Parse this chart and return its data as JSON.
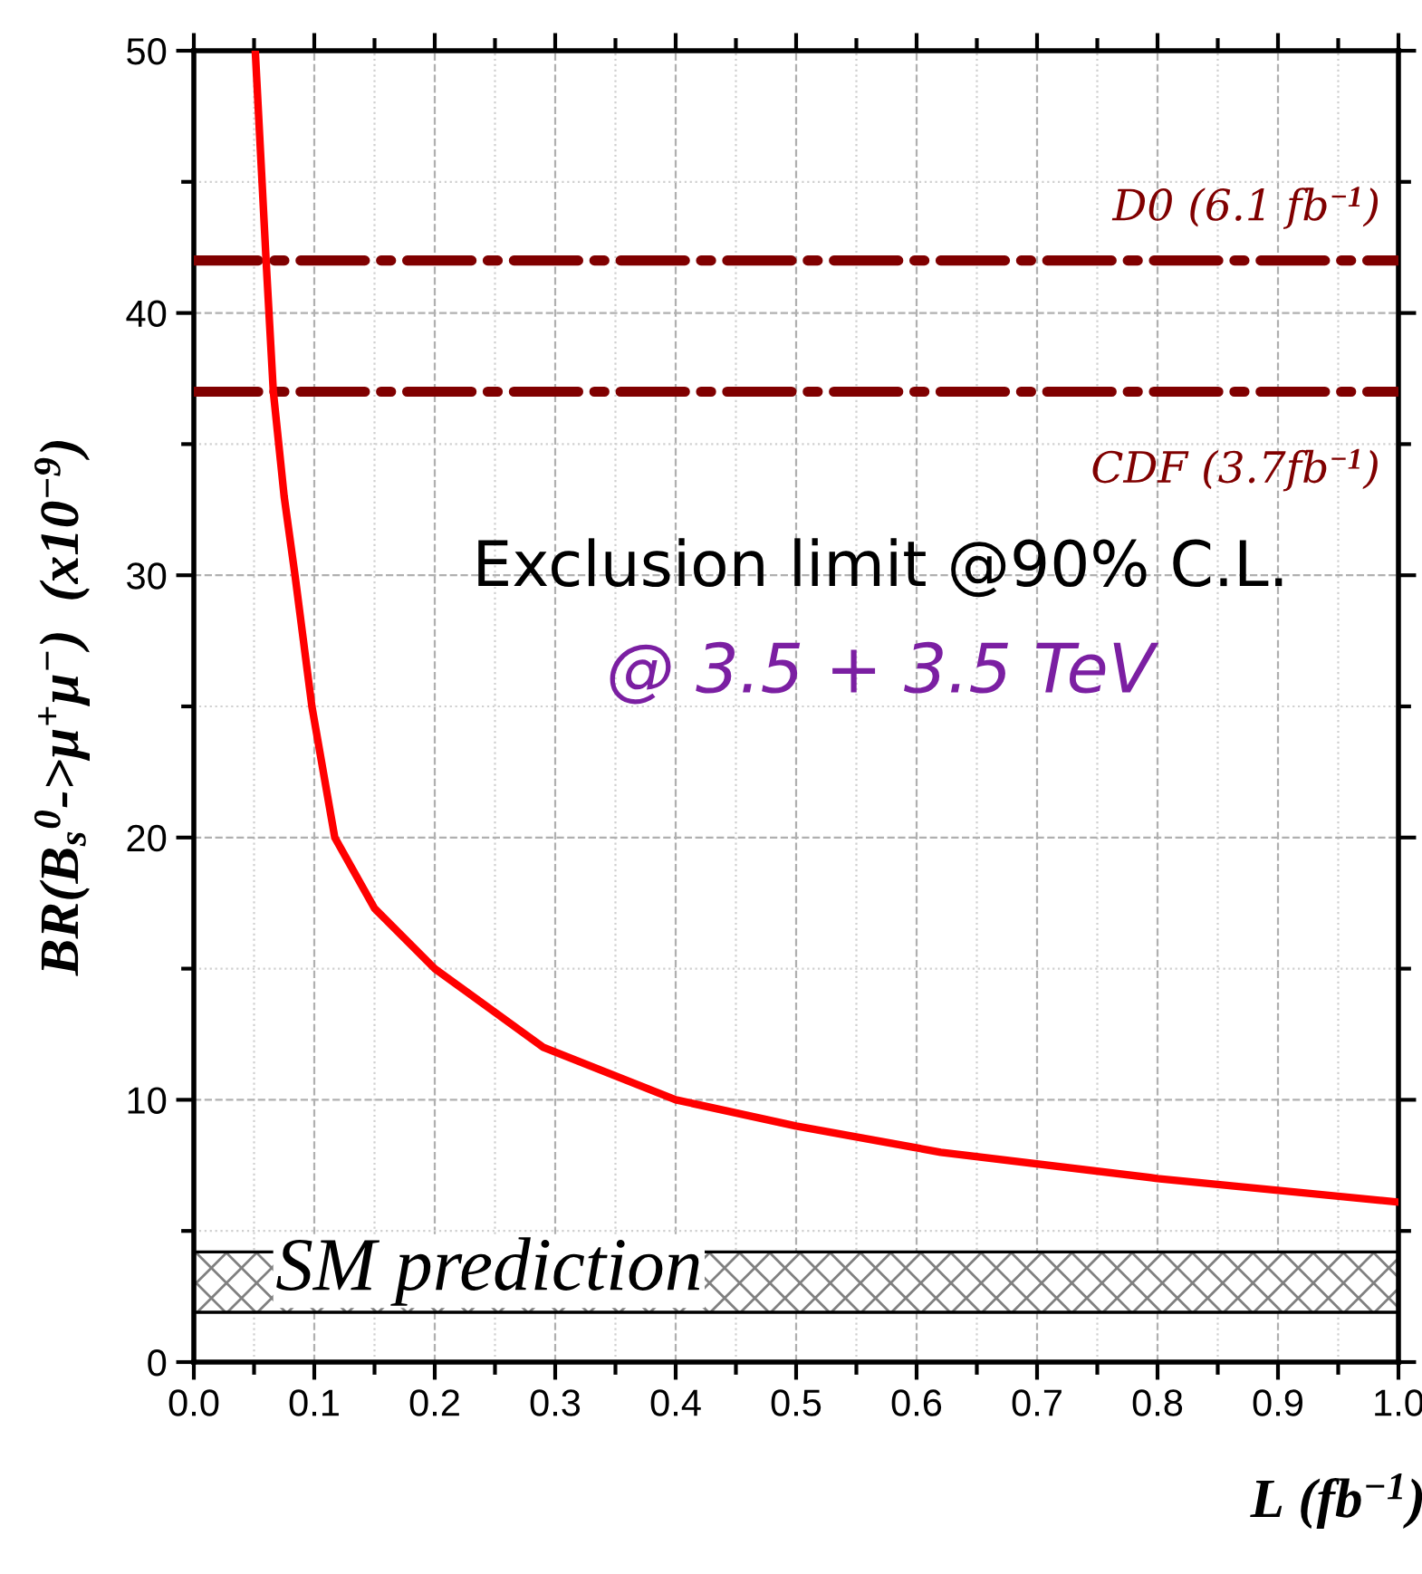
{
  "chart_data": {
    "type": "line",
    "xlabel": "L (fb$^{−1}$)",
    "ylabel": "BR(B$_{s}$$^{0}$->μ$^{+}$μ$^{−}$)  (x10$^{−9}$)",
    "x": [
      0.051,
      0.06,
      0.066,
      0.075,
      0.084,
      0.098,
      0.117,
      0.15,
      0.2,
      0.29,
      0.4,
      0.5,
      0.62,
      0.8,
      1.0
    ],
    "series": [
      {
        "color": "#ff0000",
        "values": [
          50,
          42,
          37,
          33,
          30,
          25,
          20,
          17.3,
          15,
          12,
          10,
          9,
          8,
          7,
          6.1
        ]
      }
    ],
    "xlim": [
      0,
      1.0
    ],
    "ylim": [
      0,
      50
    ],
    "xticks": [
      {
        "value": 0,
        "label": "0.0"
      },
      0.1,
      0.2,
      0.3,
      0.4,
      0.5,
      0.6,
      0.7,
      0.8,
      0.9,
      {
        "value": 1.0,
        "label": "1.0"
      }
    ],
    "yticks": [
      0,
      10,
      20,
      30,
      40,
      50
    ],
    "grid": true,
    "marker": "none",
    "line_style": "solid",
    "ref_lines": [
      {
        "axis": "y",
        "value": 42,
        "label": "D0 (6.1 fb$^{−1}$)",
        "color": "#800000",
        "line_style": "dashdot"
      },
      {
        "axis": "y",
        "value": 37,
        "label": "CDF (3.7fb$^{−1}$)",
        "color": "#800000",
        "line_style": "dashdot"
      }
    ],
    "bands": [
      {
        "axis": "y",
        "from": 1.9,
        "to": 4.2,
        "label": "SM prediction",
        "color": "#808080"
      }
    ],
    "annotations": [
      "Exclusion limit @90% C.L.",
      "@ 3.5 + 3.5 TeV"
    ]
  }
}
